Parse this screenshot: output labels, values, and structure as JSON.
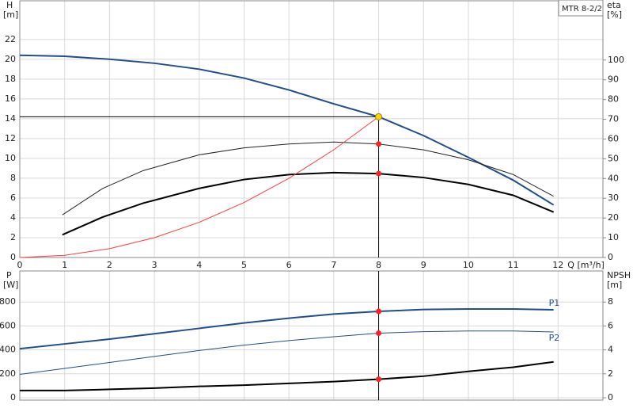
{
  "chart_data": [
    {
      "type": "line",
      "model": "MTR 8-2/2",
      "xlabel": "Q [m³/h]",
      "ylabel": "H",
      "yunit": "[m]",
      "y2label": "eta",
      "y2unit": "[%]",
      "xlim": [
        0,
        13
      ],
      "xticks": [
        0,
        1,
        2,
        3,
        4,
        5,
        6,
        7,
        8,
        9,
        10,
        11,
        12
      ],
      "xtick_labels": true,
      "ylim": [
        0,
        25.9
      ],
      "yticks": [
        0,
        2,
        4,
        6,
        8,
        10,
        12,
        14,
        16,
        18,
        20,
        22
      ],
      "y2lim": [
        0,
        130
      ],
      "y2ticks": [
        0,
        10,
        20,
        30,
        40,
        50,
        60,
        70,
        80,
        90,
        100
      ],
      "grid": true,
      "duty_point": {
        "x": 8,
        "y": 14.2,
        "color": "#ffd700"
      },
      "series": [
        {
          "color": "#1f4e8c",
          "line_width": 2,
          "x": [
            0,
            1,
            2,
            3,
            4,
            5,
            6,
            7,
            8,
            9,
            10,
            11,
            11.9
          ],
          "values": [
            20.4,
            20.3,
            20.0,
            19.6,
            19.0,
            18.1,
            16.9,
            15.5,
            14.2,
            12.3,
            10.1,
            7.8,
            5.3
          ]
        },
        {
          "color": "#222222",
          "line_width": 1,
          "axis": "y2",
          "highlight": true,
          "x": [
            0.95,
            1.85,
            2.75,
            4,
            5,
            6,
            7,
            8,
            9,
            10,
            11,
            11.9
          ],
          "values": [
            21.6,
            35,
            44,
            52,
            55.5,
            57.5,
            58.5,
            57.5,
            54.5,
            49.5,
            42,
            31
          ]
        },
        {
          "color": "#000000",
          "line_width": 2,
          "axis": "y2",
          "highlight": true,
          "x": [
            0.95,
            1.85,
            2.75,
            4,
            5,
            6,
            7,
            8,
            9,
            10,
            11,
            11.9
          ],
          "values": [
            11.5,
            20.5,
            27.5,
            35,
            39.5,
            42,
            43,
            42.5,
            40.5,
            37,
            31.5,
            23
          ]
        },
        {
          "color": "#ff3b3b",
          "line_width": 1,
          "x": [
            0,
            1,
            2,
            3,
            4,
            5,
            6,
            7,
            8
          ],
          "values": [
            0,
            0.22,
            0.89,
            2.0,
            3.55,
            5.55,
            7.99,
            10.87,
            14.2
          ]
        }
      ]
    },
    {
      "type": "line",
      "ylabel": "P",
      "yunit": "[W]",
      "y2label": "NPSH",
      "y2unit": "[m]",
      "xlim": [
        0,
        13
      ],
      "xticks": [
        0,
        1,
        2,
        3,
        4,
        5,
        6,
        7,
        8,
        9,
        10,
        11,
        12
      ],
      "xtick_labels": false,
      "ylim": [
        -20,
        1060
      ],
      "yticks": [
        0,
        200,
        400,
        600,
        800
      ],
      "y2lim": [
        -0.2,
        10.6
      ],
      "y2ticks": [
        0,
        2,
        4,
        6,
        8
      ],
      "grid": true,
      "cursor_x": 8,
      "series": [
        {
          "name": "P1",
          "color": "#1f4e8c",
          "line_width": 2,
          "highlight": true,
          "x": [
            0,
            1,
            2,
            3,
            4,
            5,
            6,
            7,
            8,
            9,
            10,
            11,
            11.9
          ],
          "values": [
            410,
            450,
            490,
            535,
            580,
            625,
            665,
            700,
            722,
            738,
            742,
            742,
            735
          ]
        },
        {
          "name": "P2",
          "color": "#1f4e8c",
          "line_width": 1,
          "highlight": true,
          "x": [
            0,
            1,
            2,
            3,
            4,
            5,
            6,
            7,
            8,
            9,
            10,
            11,
            11.9
          ],
          "values": [
            195,
            245,
            295,
            345,
            395,
            440,
            478,
            510,
            540,
            552,
            558,
            558,
            550
          ]
        },
        {
          "color": "#000000",
          "line_width": 2,
          "axis": "y2",
          "highlight": true,
          "x": [
            0,
            1,
            2,
            3,
            4,
            5,
            6,
            7,
            8,
            9,
            10,
            11,
            11.9
          ],
          "values": [
            0.6,
            0.6,
            0.7,
            0.8,
            0.95,
            1.05,
            1.2,
            1.35,
            1.55,
            1.8,
            2.2,
            2.55,
            3.0
          ]
        }
      ]
    }
  ]
}
